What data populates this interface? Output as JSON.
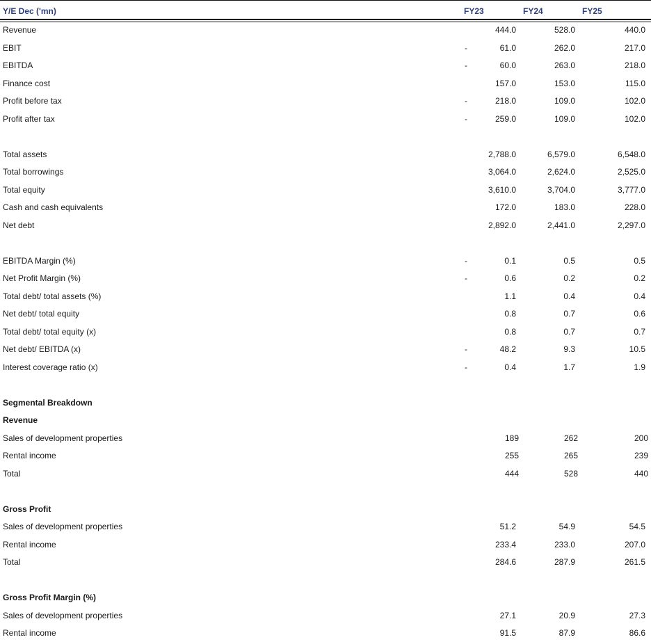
{
  "header": {
    "label": "Y/E Dec ('mn)",
    "years": [
      "FY23",
      "FY24",
      "FY25"
    ]
  },
  "sections": {
    "income": [
      {
        "label": "Revenue",
        "neg": false,
        "v": [
          "444.0",
          "528.0",
          "440.0"
        ]
      },
      {
        "label": "EBIT",
        "neg": true,
        "v": [
          "61.0",
          "262.0",
          "217.0"
        ]
      },
      {
        "label": "EBITDA",
        "neg": true,
        "v": [
          "60.0",
          "263.0",
          "218.0"
        ]
      },
      {
        "label": "Finance cost",
        "neg": false,
        "v": [
          "157.0",
          "153.0",
          "115.0"
        ]
      },
      {
        "label": "Profit before tax",
        "neg": true,
        "v": [
          "218.0",
          "109.0",
          "102.0"
        ]
      },
      {
        "label": "Profit after tax",
        "neg": true,
        "v": [
          "259.0",
          "109.0",
          "102.0"
        ]
      }
    ],
    "balance": [
      {
        "label": "Total assets",
        "neg": false,
        "v": [
          "2,788.0",
          "6,579.0",
          "6,548.0"
        ]
      },
      {
        "label": "Total borrowings",
        "neg": false,
        "v": [
          "3,064.0",
          "2,624.0",
          "2,525.0"
        ]
      },
      {
        "label": "Total equity",
        "neg": false,
        "v": [
          "3,610.0",
          "3,704.0",
          "3,777.0"
        ]
      },
      {
        "label": "Cash and cash equivalents",
        "neg": false,
        "v": [
          "172.0",
          "183.0",
          "228.0"
        ]
      },
      {
        "label": "Net debt",
        "neg": false,
        "v": [
          "2,892.0",
          "2,441.0",
          "2,297.0"
        ]
      }
    ],
    "ratios": [
      {
        "label": "EBITDA Margin (%)",
        "neg": true,
        "v": [
          "0.1",
          "0.5",
          "0.5"
        ]
      },
      {
        "label": "Net Profit Margin (%)",
        "neg": true,
        "v": [
          "0.6",
          "0.2",
          "0.2"
        ]
      },
      {
        "label": "Total debt/ total assets (%)",
        "neg": false,
        "v": [
          "1.1",
          "0.4",
          "0.4"
        ]
      },
      {
        "label": "Net debt/ total equity",
        "neg": false,
        "v": [
          "0.8",
          "0.7",
          "0.6"
        ]
      },
      {
        "label": "Total debt/ total equity (x)",
        "neg": false,
        "v": [
          "0.8",
          "0.7",
          "0.7"
        ]
      },
      {
        "label": "Net debt/ EBITDA (x)",
        "neg": true,
        "v": [
          "48.2",
          "9.3",
          "10.5"
        ]
      },
      {
        "label": "Interest coverage ratio (x)",
        "neg": true,
        "v": [
          "0.4",
          "1.7",
          "1.9"
        ]
      }
    ],
    "segmental_title": "Segmental Breakdown",
    "revenue_title": "Revenue",
    "revenue": [
      {
        "label": "Sales of  development properties",
        "v": [
          "189",
          "262",
          "200"
        ]
      },
      {
        "label": "Rental income",
        "v": [
          "255",
          "265",
          "239"
        ]
      },
      {
        "label": "Total",
        "v": [
          "444",
          "528",
          "440"
        ]
      }
    ],
    "gross_profit_title": "Gross Profit",
    "gross_profit": [
      {
        "label": "Sales of  development properties",
        "v": [
          "51.2",
          "54.9",
          "54.5"
        ]
      },
      {
        "label": "Rental income",
        "v": [
          "233.4",
          "233.0",
          "207.0"
        ]
      },
      {
        "label": "Total",
        "v": [
          "284.6",
          "287.9",
          "261.5"
        ]
      }
    ],
    "gpm_title": "Gross Profit Margin (%)",
    "gpm": [
      {
        "label": "Sales of  development properties",
        "v": [
          "27.1",
          "20.9",
          "27.3"
        ]
      },
      {
        "label": "Rental income",
        "v": [
          "91.5",
          "87.9",
          "86.6"
        ]
      }
    ]
  }
}
